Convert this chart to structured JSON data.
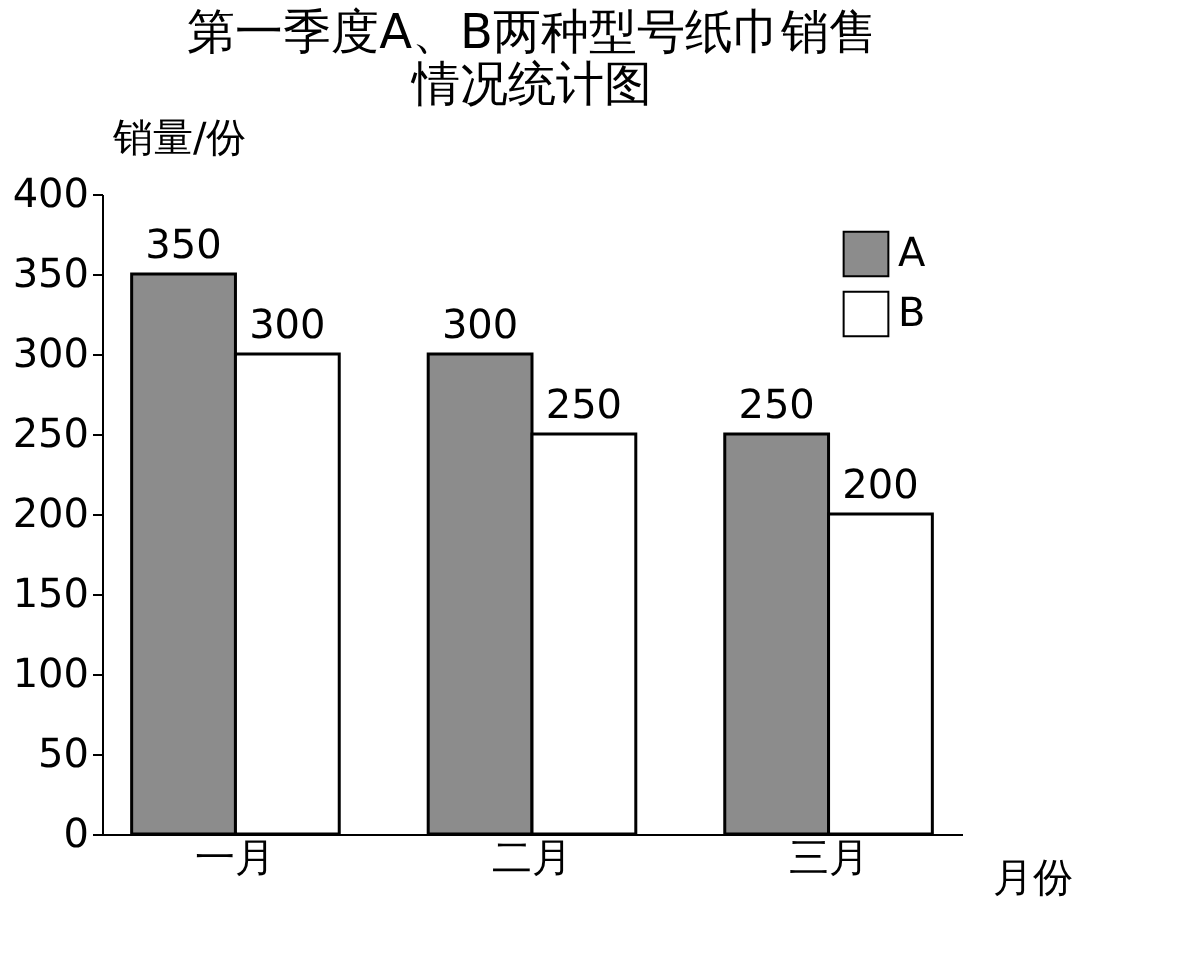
{
  "chart_data": {
    "type": "bar",
    "title": "第一季度A、B两种型号纸巾销售情况统计图",
    "ylabel": "销量/份",
    "xlabel": "月份",
    "categories": [
      "一月",
      "二月",
      "三月"
    ],
    "series": [
      {
        "name": "A",
        "color": "#8c8c8c",
        "values": [
          350,
          300,
          250
        ]
      },
      {
        "name": "B",
        "color": "#ffffff",
        "values": [
          300,
          250,
          200
        ]
      }
    ],
    "ylim": [
      0,
      400
    ],
    "yticks": [
      0,
      50,
      100,
      150,
      200,
      250,
      300,
      350,
      400
    ],
    "data_labels": true,
    "legend": "top right",
    "grid": false
  }
}
